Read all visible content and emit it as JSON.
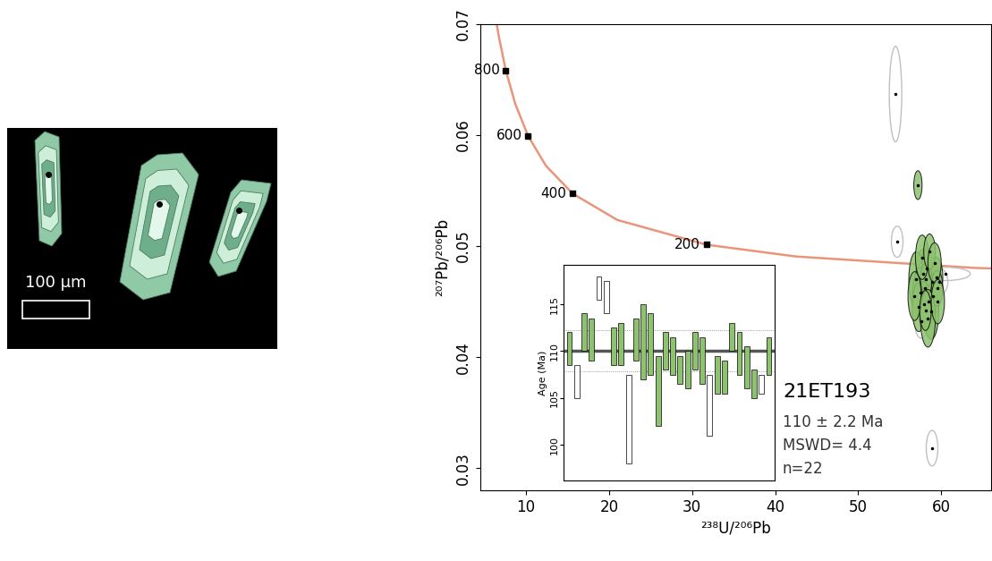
{
  "image": {
    "scale_bar_label": "100 µm"
  },
  "chart_data": [
    {
      "type": "scatter",
      "xlabel": "²³⁸U/²⁰⁶Pb",
      "ylabel": "²⁰⁷Pb/²⁰⁶Pb",
      "xlim": [
        4.5,
        66
      ],
      "xticks": [
        10,
        20,
        30,
        40,
        50,
        60
      ],
      "ylim": [
        0.028,
        0.07
      ],
      "yticks": [
        0.03,
        0.04,
        0.05,
        0.06,
        0.07
      ],
      "grid": false,
      "concordia": {
        "color": "#e8957a",
        "x": [
          128.4,
          85.45,
          63.97,
          42.48,
          31.73,
          20.99,
          15.62,
          12.4,
          10.25,
          8.718,
          7.568,
          6.674,
          5.959
        ],
        "y": [
          0.04703,
          0.04753,
          0.04804,
          0.04907,
          0.05013,
          0.05236,
          0.05473,
          0.05724,
          0.05993,
          0.06279,
          0.06583,
          0.06908,
          0.07253
        ]
      },
      "age_markers": {
        "ages": [
          200,
          400,
          600,
          800
        ],
        "x": [
          31.73,
          15.62,
          10.25,
          7.568
        ],
        "y": [
          0.05013,
          0.05473,
          0.05993,
          0.06583
        ]
      },
      "groups": [
        {
          "marker": "filled",
          "color": "#8dc26f",
          "x": [
            57.2,
            57.8,
            58.3,
            57.0,
            58.9,
            59.4,
            58.0,
            57.5,
            59.0,
            58.5,
            57.9,
            58.8,
            57.3,
            59.5,
            58.2,
            57.7,
            58.6,
            59.2,
            56.8,
            58.4,
            59.6,
            58.1
          ],
          "y": [
            0.0555,
            0.0475,
            0.048,
            0.047,
            0.0468,
            0.0472,
            0.0462,
            0.0458,
            0.0455,
            0.045,
            0.0448,
            0.0441,
            0.0445,
            0.0462,
            0.047,
            0.049,
            0.0495,
            0.0485,
            0.0455,
            0.0435,
            0.045,
            0.0442
          ],
          "x_error": [
            0.5,
            0.9,
            0.8,
            0.9,
            0.9,
            0.8,
            0.8,
            0.9,
            0.8,
            0.9,
            0.8,
            0.9,
            0.8,
            0.7,
            0.7,
            0.8,
            0.7,
            0.8,
            0.8,
            0.9,
            0.8,
            0.7
          ],
          "y_error": [
            0.0013,
            0.0022,
            0.0018,
            0.0025,
            0.002,
            0.0018,
            0.002,
            0.0023,
            0.002,
            0.0024,
            0.002,
            0.0025,
            0.0022,
            0.0016,
            0.0015,
            0.002,
            0.0016,
            0.0018,
            0.0022,
            0.0026,
            0.002,
            0.0018
          ]
        },
        {
          "marker": "open",
          "color": "#c0c0c0",
          "x": [
            54.5,
            54.7,
            58.9,
            60.5,
            57.6,
            59.8
          ],
          "y": [
            0.0637,
            0.0504,
            0.0318,
            0.0475,
            0.0432,
            0.0468
          ],
          "x_error": [
            0.75,
            0.7,
            0.7,
            3.0,
            0.8,
            1.0
          ],
          "y_error": [
            0.0043,
            0.0014,
            0.0016,
            0.0006,
            0.0015,
            0.0012
          ]
        }
      ],
      "annotations": [
        "21ET193",
        "110 ± 2.2 Ma",
        "MSWD= 4.4",
        "n=22"
      ]
    },
    {
      "type": "bar",
      "ylabel": "Age (Ma)",
      "ylim": [
        96.2,
        119.2
      ],
      "yticks": [
        100,
        105,
        110,
        115
      ],
      "tick_labels": "y",
      "grid": false,
      "color": "#8dc26f",
      "low": [
        108.5,
        105,
        110,
        109,
        115.5,
        114,
        108.5,
        108.5,
        98,
        109,
        107,
        107.5,
        102,
        108,
        107.5,
        106.5,
        106,
        108,
        106.5,
        101,
        105.5,
        105.5,
        110,
        107.5,
        106,
        105,
        105.5,
        107.5
      ],
      "high": [
        112,
        108.5,
        114,
        113.5,
        118,
        117.5,
        112.5,
        113,
        107.5,
        113.5,
        115,
        114,
        109.5,
        112,
        111.5,
        109.5,
        110,
        112,
        111.5,
        107.5,
        109.5,
        109,
        113,
        112,
        110.5,
        108,
        107.5,
        111.5
      ],
      "used": [
        true,
        false,
        true,
        true,
        false,
        false,
        true,
        true,
        false,
        true,
        true,
        true,
        true,
        true,
        true,
        true,
        true,
        true,
        true,
        false,
        true,
        true,
        true,
        true,
        true,
        true,
        false,
        true
      ],
      "mean": 110,
      "mean_error": 2.2
    }
  ]
}
